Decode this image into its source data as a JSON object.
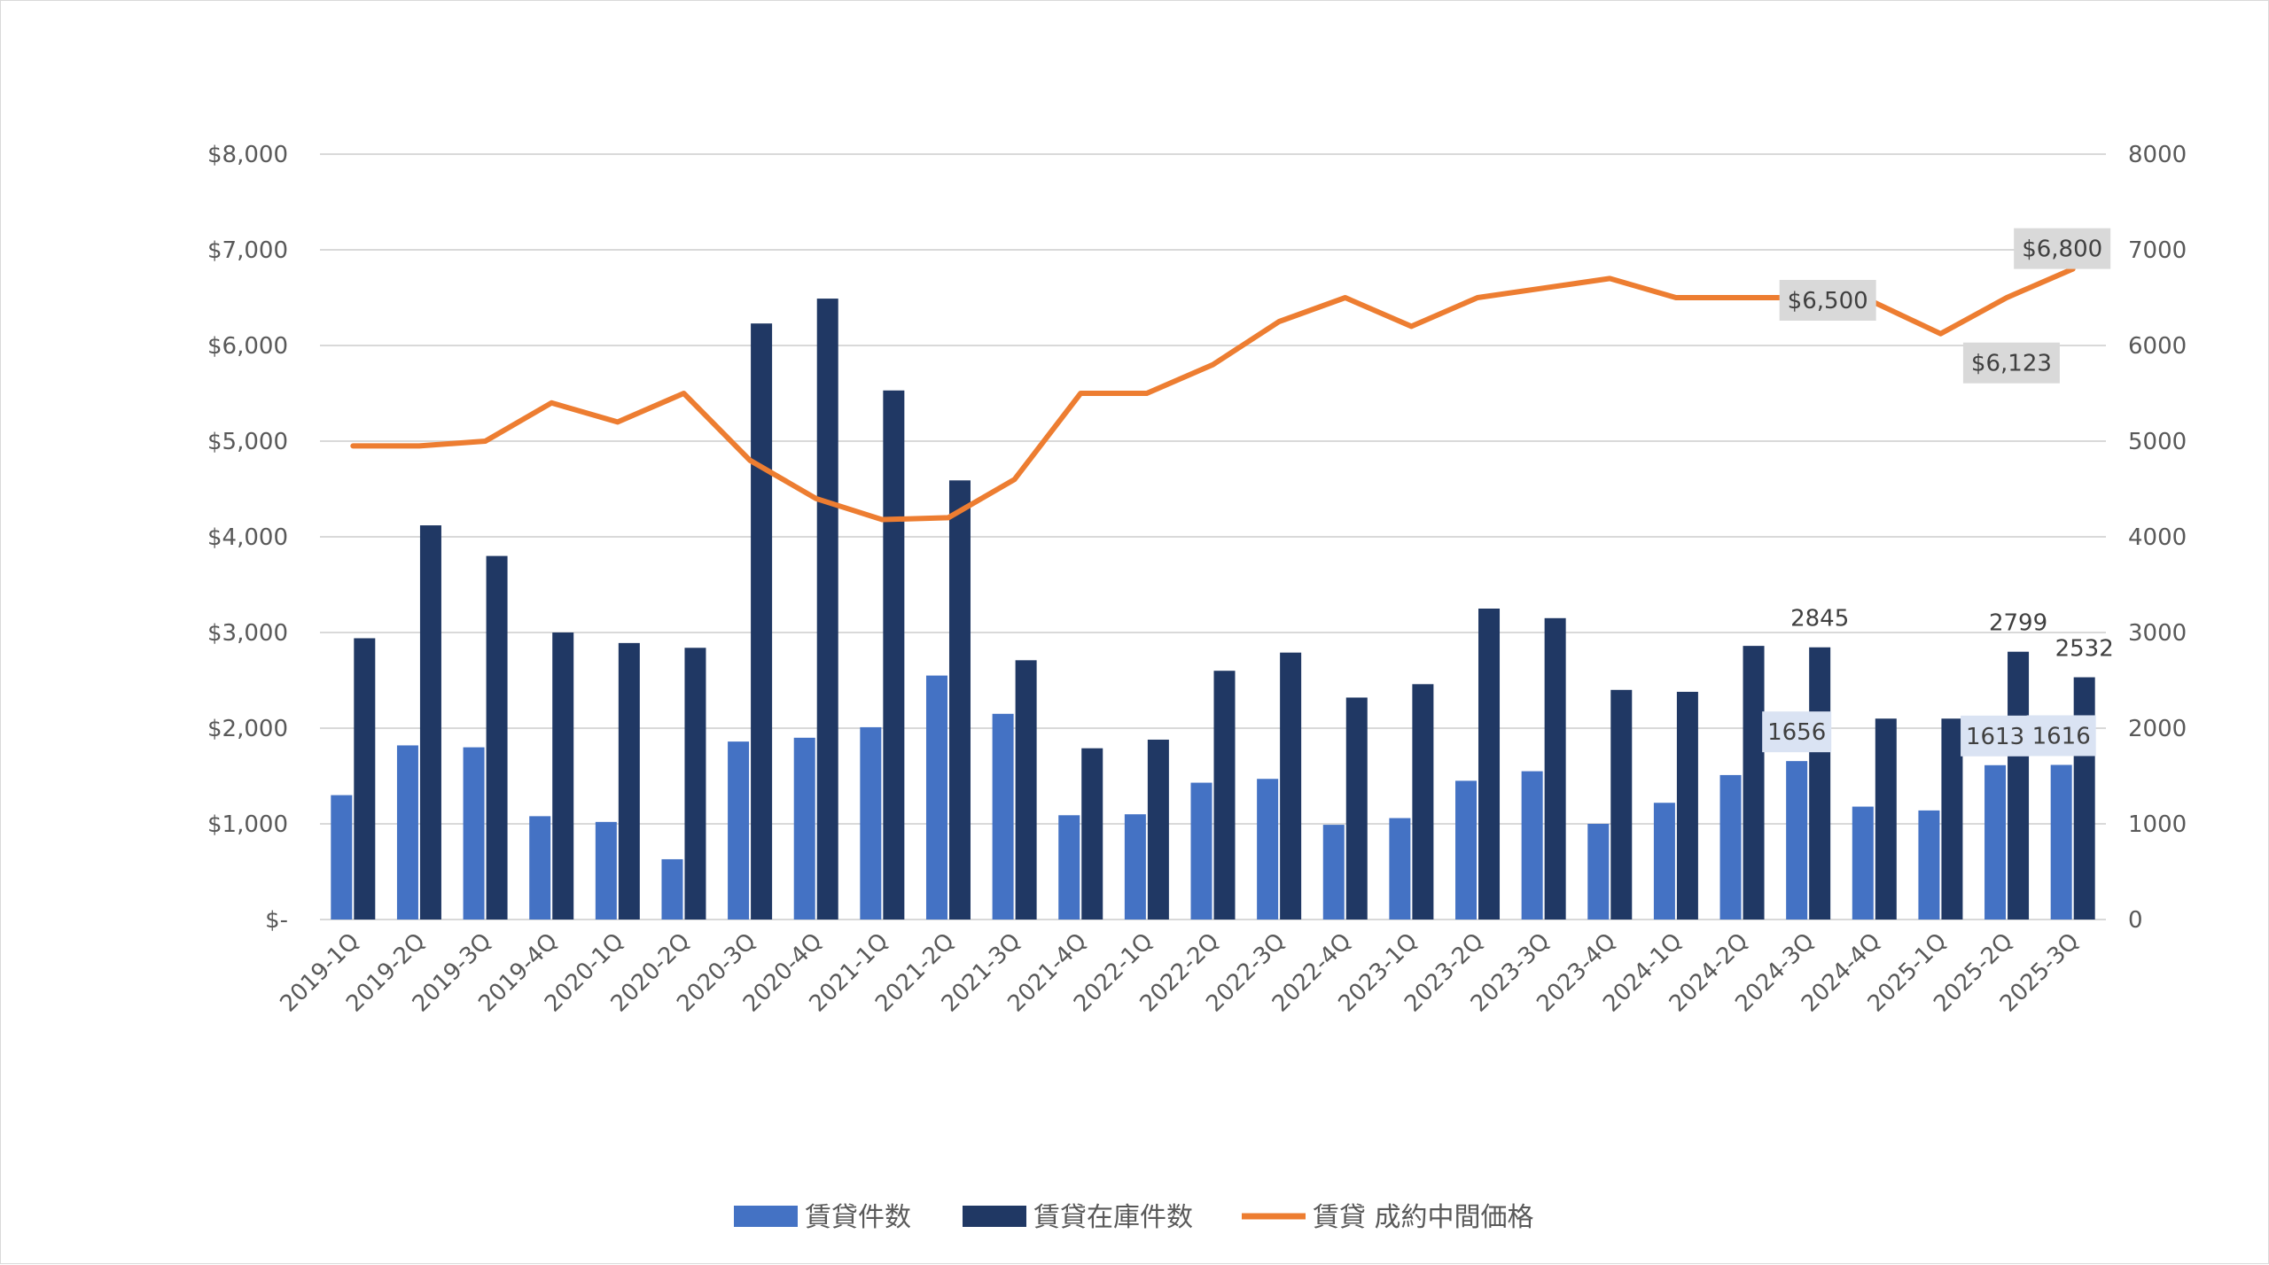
{
  "chart_data": {
    "type": "bar",
    "categories": [
      "2019-1Q",
      "2019-2Q",
      "2019-3Q",
      "2019-4Q",
      "2020-1Q",
      "2020-2Q",
      "2020-3Q",
      "2020-4Q",
      "2021-1Q",
      "2021-2Q",
      "2021-3Q",
      "2021-4Q",
      "2022-1Q",
      "2022-2Q",
      "2022-3Q",
      "2022-4Q",
      "2023-1Q",
      "2023-2Q",
      "2023-3Q",
      "2023-4Q",
      "2024-1Q",
      "2024-2Q",
      "2024-3Q",
      "2024-4Q",
      "2025-1Q",
      "2025-2Q",
      "2025-3Q"
    ],
    "series": [
      {
        "name": "賃貸件数",
        "type": "bar",
        "axis": "right",
        "color": "#4472C4",
        "values": [
          1300,
          1820,
          1800,
          1080,
          1020,
          630,
          1860,
          1900,
          2010,
          2550,
          2150,
          1090,
          1100,
          1430,
          1470,
          990,
          1060,
          1450,
          1550,
          1000,
          1220,
          1510,
          1656,
          1180,
          1140,
          1613,
          1616
        ]
      },
      {
        "name": "賃貸在庫件数",
        "type": "bar",
        "axis": "right",
        "color": "#203864",
        "values": [
          2940,
          4120,
          3800,
          3000,
          2890,
          2840,
          6230,
          6490,
          5530,
          4590,
          2710,
          1790,
          1880,
          2600,
          2790,
          2320,
          2460,
          3250,
          3150,
          2400,
          2380,
          2860,
          2845,
          2100,
          2100,
          2799,
          2532
        ]
      },
      {
        "name": "賃貸 成約中間価格",
        "type": "line",
        "axis": "left",
        "color": "#ED7D31",
        "values": [
          4950,
          4950,
          5000,
          5400,
          5200,
          5500,
          4800,
          4400,
          4180,
          4200,
          4600,
          5500,
          5500,
          5800,
          6250,
          6500,
          6200,
          6500,
          6600,
          6700,
          6500,
          6500,
          6500,
          6450,
          6123,
          6500,
          6800
        ]
      }
    ],
    "y_left": {
      "min": 0,
      "max": 8000,
      "ticks": [
        "$-",
        "$1,000",
        "$2,000",
        "$3,000",
        "$4,000",
        "$5,000",
        "$6,000",
        "$7,000",
        "$8,000"
      ]
    },
    "y_right": {
      "min": 0,
      "max": 8000,
      "ticks": [
        "0",
        "1000",
        "2000",
        "3000",
        "4000",
        "5000",
        "6000",
        "7000",
        "8000"
      ]
    },
    "data_labels": [
      {
        "series": 0,
        "index": 22,
        "text": "1656",
        "boxed": true
      },
      {
        "series": 0,
        "index": 25,
        "text": "1613",
        "boxed": true
      },
      {
        "series": 0,
        "index": 26,
        "text": "1616",
        "boxed": true
      },
      {
        "series": 1,
        "index": 22,
        "text": "2845",
        "boxed": false
      },
      {
        "series": 1,
        "index": 25,
        "text": "2799",
        "boxed": false
      },
      {
        "series": 1,
        "index": 26,
        "text": "2532",
        "boxed": false
      },
      {
        "series": 2,
        "index": 22,
        "text": "$6,500",
        "boxed": true
      },
      {
        "series": 2,
        "index": 24,
        "text": "$6,123",
        "boxed": true
      },
      {
        "series": 2,
        "index": 26,
        "text": "$6,800",
        "boxed": true
      }
    ],
    "grid": true,
    "legend_position": "bottom"
  }
}
